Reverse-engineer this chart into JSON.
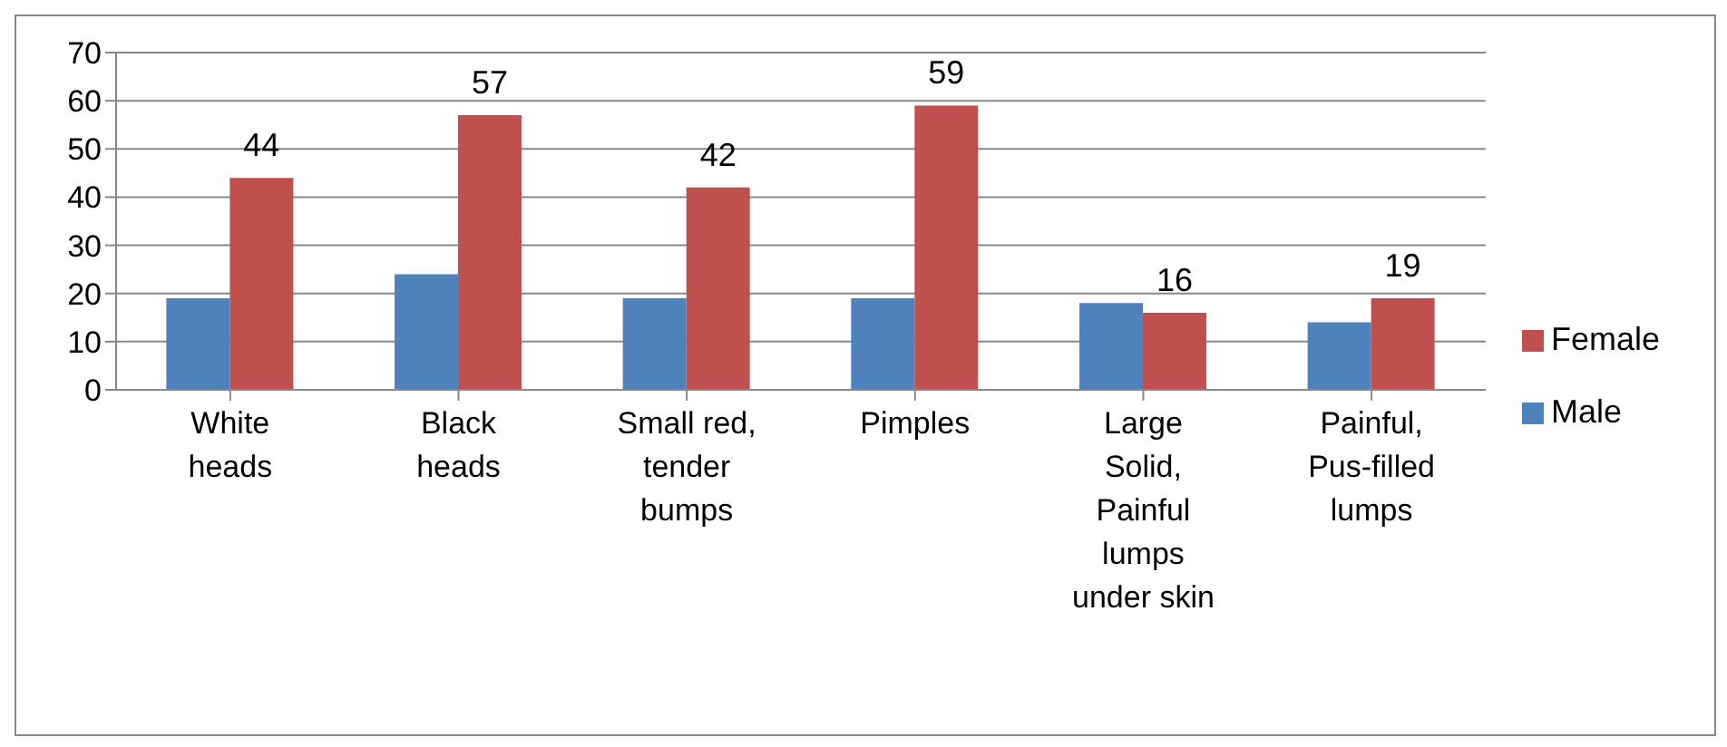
{
  "chart_data": {
    "type": "bar",
    "categories": [
      "White\nheads",
      "Black\nheads",
      "Small red,\ntender\nbumps",
      "Pimples",
      "Large\nSolid,\nPainful\nlumps\nunder skin",
      "Painful,\nPus-filled\nlumps"
    ],
    "series": [
      {
        "name": "Male",
        "color": "#4f81bd",
        "values": [
          19,
          24,
          19,
          19,
          18,
          14
        ]
      },
      {
        "name": "Female",
        "color": "#c0504d",
        "values": [
          44,
          57,
          42,
          59,
          16,
          19
        ],
        "value_labels": [
          "44",
          "57",
          "42",
          "59",
          "16",
          "19"
        ]
      }
    ],
    "ylim": [
      0,
      70
    ],
    "yticks": [
      0,
      10,
      20,
      30,
      40,
      50,
      60,
      70
    ],
    "grid": "y",
    "legend": "right"
  }
}
